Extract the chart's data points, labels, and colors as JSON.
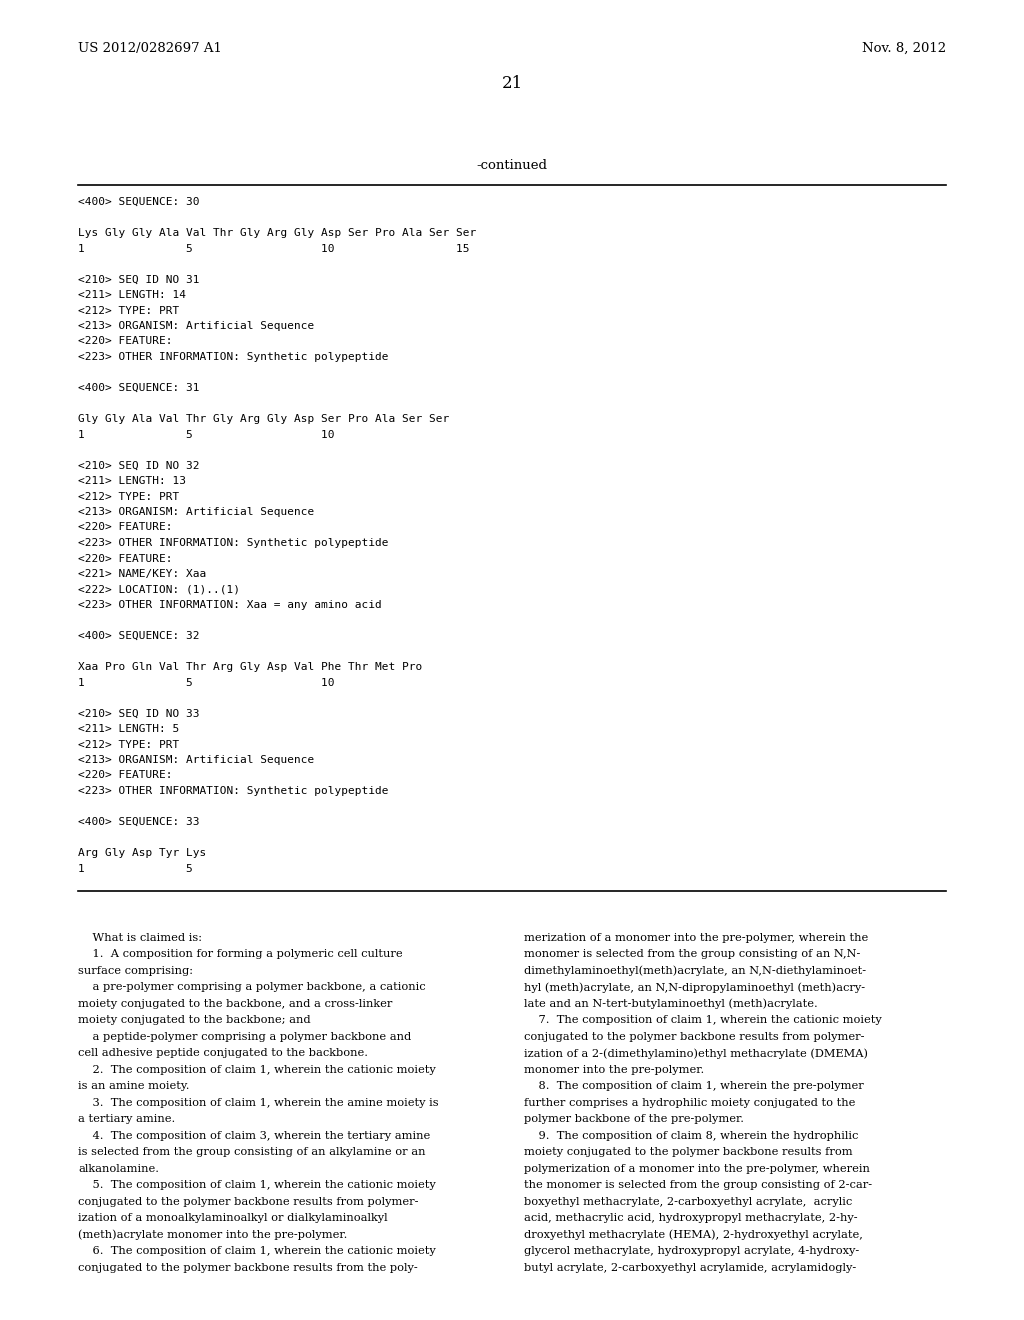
{
  "bg_color": "#ffffff",
  "header_left": "US 2012/0282697 A1",
  "header_right": "Nov. 8, 2012",
  "page_number": "21",
  "continued_label": "-continued",
  "mono_font": "DejaVu Sans Mono",
  "serif_font": "DejaVu Serif",
  "sequence_block": [
    "<400> SEQUENCE: 30",
    "",
    "Lys Gly Gly Ala Val Thr Gly Arg Gly Asp Ser Pro Ala Ser Ser",
    "1               5                   10                  15"
  ],
  "seq31_block": [
    "<210> SEQ ID NO 31",
    "<211> LENGTH: 14",
    "<212> TYPE: PRT",
    "<213> ORGANISM: Artificial Sequence",
    "<220> FEATURE:",
    "<223> OTHER INFORMATION: Synthetic polypeptide",
    "",
    "<400> SEQUENCE: 31",
    "",
    "Gly Gly Ala Val Thr Gly Arg Gly Asp Ser Pro Ala Ser Ser",
    "1               5                   10"
  ],
  "seq32_block": [
    "<210> SEQ ID NO 32",
    "<211> LENGTH: 13",
    "<212> TYPE: PRT",
    "<213> ORGANISM: Artificial Sequence",
    "<220> FEATURE:",
    "<223> OTHER INFORMATION: Synthetic polypeptide",
    "<220> FEATURE:",
    "<221> NAME/KEY: Xaa",
    "<222> LOCATION: (1)..(1)",
    "<223> OTHER INFORMATION: Xaa = any amino acid",
    "",
    "<400> SEQUENCE: 32",
    "",
    "Xaa Pro Gln Val Thr Arg Gly Asp Val Phe Thr Met Pro",
    "1               5                   10"
  ],
  "seq33_block": [
    "<210> SEQ ID NO 33",
    "<211> LENGTH: 5",
    "<212> TYPE: PRT",
    "<213> ORGANISM: Artificial Sequence",
    "<220> FEATURE:",
    "<223> OTHER INFORMATION: Synthetic polypeptide",
    "",
    "<400> SEQUENCE: 33",
    "",
    "Arg Gly Asp Tyr Lys",
    "1               5"
  ],
  "claims_col1": [
    "    What is claimed is:",
    "    1.  A composition for forming a polymeric cell culture",
    "surface comprising:",
    "    a pre-polymer comprising a polymer backbone, a cationic",
    "moiety conjugated to the backbone, and a cross-linker",
    "moiety conjugated to the backbone; and",
    "    a peptide-polymer comprising a polymer backbone and",
    "cell adhesive peptide conjugated to the backbone.",
    "    2.  The composition of claim 1, wherein the cationic moiety",
    "is an amine moiety.",
    "    3.  The composition of claim 1, wherein the amine moiety is",
    "a tertiary amine.",
    "    4.  The composition of claim 3, wherein the tertiary amine",
    "is selected from the group consisting of an alkylamine or an",
    "alkanolamine.",
    "    5.  The composition of claim 1, wherein the cationic moiety",
    "conjugated to the polymer backbone results from polymer-",
    "ization of a monoalkylaminoalkyl or dialkylaminoalkyl",
    "(meth)acrylate monomer into the pre-polymer.",
    "    6.  The composition of claim 1, wherein the cationic moiety",
    "conjugated to the polymer backbone results from the poly-"
  ],
  "claims_col2": [
    "merization of a monomer into the pre-polymer, wherein the",
    "monomer is selected from the group consisting of an N,N-",
    "dimethylaminoethyl(meth)acrylate, an N,N-diethylaminoet-",
    "hyl (meth)acrylate, an N,N-dipropylaminoethyl (meth)acry-",
    "late and an N-tert-butylaminoethyl (meth)acrylate.",
    "    7.  The composition of claim 1, wherein the cationic moiety",
    "conjugated to the polymer backbone results from polymer-",
    "ization of a 2-(dimethylamino)ethyl methacrylate (DMEMA)",
    "monomer into the pre-polymer.",
    "    8.  The composition of claim 1, wherein the pre-polymer",
    "further comprises a hydrophilic moiety conjugated to the",
    "polymer backbone of the pre-polymer.",
    "    9.  The composition of claim 8, wherein the hydrophilic",
    "moiety conjugated to the polymer backbone results from",
    "polymerization of a monomer into the pre-polymer, wherein",
    "the monomer is selected from the group consisting of 2-car-",
    "boxyethyl methacrylate, 2-carboxyethyl acrylate,  acrylic",
    "acid, methacrylic acid, hydroxypropyl methacrylate, 2-hy-",
    "droxyethyl methacrylate (HEMA), 2-hydroxyethyl acrylate,",
    "glycerol methacrylate, hydroxypropyl acrylate, 4-hydroxy-",
    "butyl acrylate, 2-carboxyethyl acrylamide, acrylamidogly-"
  ]
}
